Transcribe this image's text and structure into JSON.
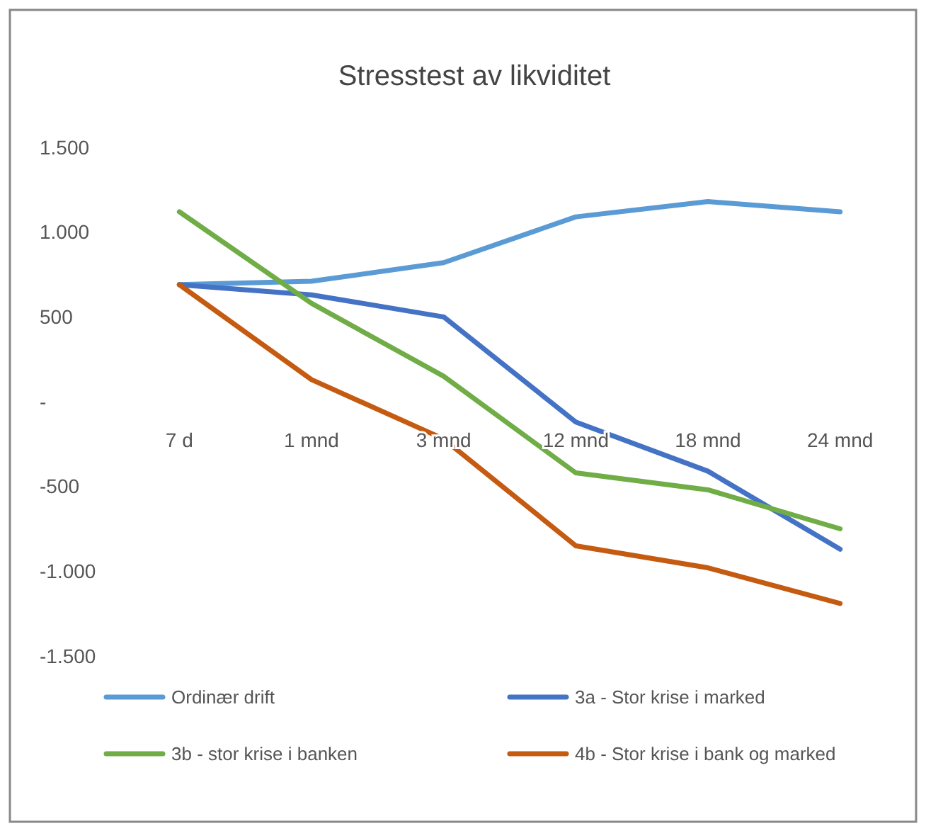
{
  "chart_data": {
    "type": "line",
    "title": "Stresstest av likviditet",
    "categories": [
      "7 d",
      "1 mnd",
      "3 mnd",
      "12 mnd",
      "18 mnd",
      "24 mnd"
    ],
    "series": [
      {
        "name": "Ordinær drift",
        "color": "#5b9bd5",
        "values": [
          690,
          710,
          820,
          1090,
          1180,
          1120
        ]
      },
      {
        "name": "3a - Stor krise i marked",
        "color": "#4472c4",
        "values": [
          690,
          630,
          500,
          -120,
          -410,
          -870
        ]
      },
      {
        "name": "3b - stor krise i banken",
        "color": "#70ad47",
        "values": [
          1120,
          580,
          150,
          -420,
          -520,
          -750
        ]
      },
      {
        "name": "4b - Stor krise i bank og marked",
        "color": "#c55a11",
        "values": [
          690,
          130,
          -220,
          -850,
          -980,
          -1190
        ]
      }
    ],
    "ylim": [
      -1500,
      1500
    ],
    "yticks": [
      {
        "value": -1500,
        "label": "-1.500"
      },
      {
        "value": -1000,
        "label": "-1.000"
      },
      -500,
      {
        "value": 0,
        "label": "-"
      },
      500,
      {
        "value": 1000,
        "label": "1.000"
      },
      {
        "value": 1500,
        "label": "1.500"
      }
    ],
    "grid": false,
    "legend": "bottom",
    "marker": "none",
    "line_style": "solid"
  }
}
